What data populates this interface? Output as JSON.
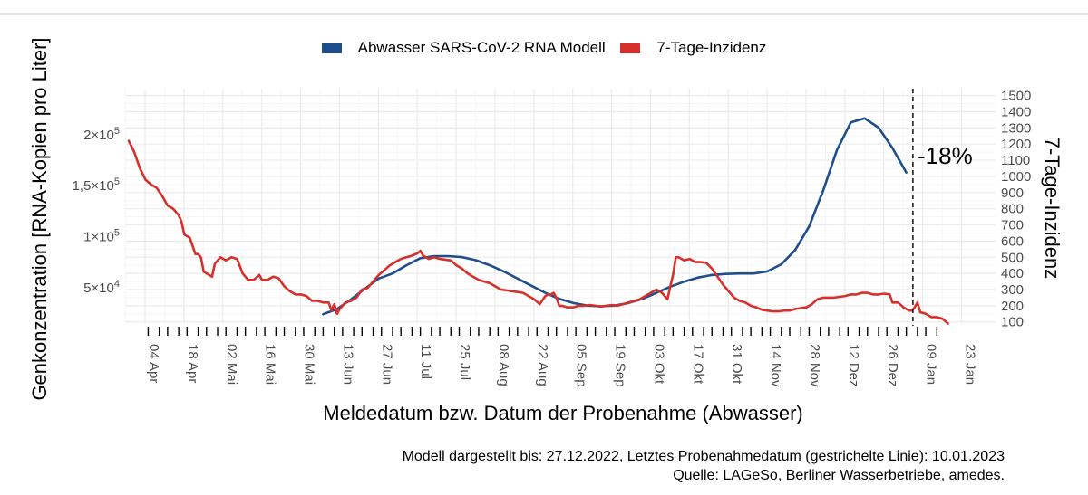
{
  "chart_data": {
    "type": "line",
    "title": "",
    "xlabel": "Meldedatum bzw. Datum der Probenahme (Abwasser)",
    "ylabel_left": "Genkonzentration [RNA-Kopien pro Liter]",
    "ylabel_right": "7-Tage-Inzidenz",
    "legend_position": "top",
    "grid": true,
    "x_tick_labels": [
      "04 Apr",
      "18 Apr",
      "02 Mai",
      "16 Mai",
      "30 Mai",
      "13 Jun",
      "27 Jun",
      "11 Jul",
      "25 Jul",
      "08 Aug",
      "22 Aug",
      "05 Sep",
      "19 Sep",
      "03 Okt",
      "17 Okt",
      "31 Okt",
      "14 Nov",
      "28 Nov",
      "12 Dez",
      "26 Dez",
      "09 Jan",
      "23 Jan"
    ],
    "left_axis": {
      "ticks": [
        {
          "value": 50000,
          "mantissa": "5",
          "exp": "4"
        },
        {
          "value": 100000,
          "mantissa": "1",
          "exp": "5"
        },
        {
          "value": 150000,
          "mantissa": "1,5",
          "exp": "5"
        },
        {
          "value": 200000,
          "mantissa": "2",
          "exp": "5"
        }
      ],
      "times_sign": "×10"
    },
    "right_axis": {
      "ticks": [
        100,
        200,
        300,
        400,
        500,
        600,
        700,
        800,
        900,
        1000,
        1100,
        1200,
        1300,
        1400,
        1500
      ]
    },
    "series": [
      {
        "name": "Abwasser SARS-CoV-2 RNA Modell",
        "color": "#1f4e8c",
        "axis": "left",
        "points": [
          [
            70,
            24000
          ],
          [
            75,
            29000
          ],
          [
            80,
            38500
          ],
          [
            85,
            49000
          ],
          [
            88,
            55000
          ],
          [
            90,
            59000
          ],
          [
            95,
            64000
          ],
          [
            100,
            72000
          ],
          [
            105,
            79000
          ],
          [
            110,
            81000
          ],
          [
            115,
            81000
          ],
          [
            120,
            80000
          ],
          [
            125,
            77000
          ],
          [
            130,
            72000
          ],
          [
            135,
            66000
          ],
          [
            140,
            59000
          ],
          [
            145,
            52000
          ],
          [
            150,
            45000
          ],
          [
            155,
            39000
          ],
          [
            160,
            35000
          ],
          [
            165,
            32500
          ],
          [
            170,
            31800
          ],
          [
            175,
            32500
          ],
          [
            180,
            35000
          ],
          [
            185,
            39000
          ],
          [
            190,
            45000
          ],
          [
            195,
            51000
          ],
          [
            200,
            56000
          ],
          [
            205,
            60000
          ],
          [
            210,
            62500
          ],
          [
            215,
            63500
          ],
          [
            220,
            64000
          ],
          [
            225,
            64000
          ],
          [
            230,
            66000
          ],
          [
            235,
            73000
          ],
          [
            240,
            87000
          ],
          [
            245,
            110000
          ],
          [
            250,
            145000
          ],
          [
            255,
            185000
          ],
          [
            260,
            212000
          ],
          [
            265,
            216000
          ],
          [
            270,
            207000
          ],
          [
            275,
            187000
          ],
          [
            280,
            163000
          ]
        ]
      },
      {
        "name": "7-Tage-Inzidenz",
        "color": "#d7302b",
        "axis": "right",
        "points": [
          [
            0,
            1220
          ],
          [
            2,
            1150
          ],
          [
            4,
            1050
          ],
          [
            6,
            980
          ],
          [
            8,
            950
          ],
          [
            10,
            930
          ],
          [
            12,
            880
          ],
          [
            14,
            820
          ],
          [
            16,
            800
          ],
          [
            18,
            760
          ],
          [
            19,
            720
          ],
          [
            20,
            640
          ],
          [
            22,
            620
          ],
          [
            24,
            520
          ],
          [
            25,
            520
          ],
          [
            26,
            500
          ],
          [
            27,
            410
          ],
          [
            29,
            390
          ],
          [
            30,
            380
          ],
          [
            31,
            460
          ],
          [
            33,
            500
          ],
          [
            35,
            480
          ],
          [
            37,
            500
          ],
          [
            39,
            490
          ],
          [
            41,
            400
          ],
          [
            43,
            360
          ],
          [
            45,
            360
          ],
          [
            47,
            390
          ],
          [
            48,
            360
          ],
          [
            50,
            360
          ],
          [
            52,
            380
          ],
          [
            54,
            370
          ],
          [
            56,
            320
          ],
          [
            58,
            290
          ],
          [
            60,
            270
          ],
          [
            62,
            270
          ],
          [
            64,
            260
          ],
          [
            66,
            230
          ],
          [
            68,
            230
          ],
          [
            70,
            220
          ],
          [
            72,
            220
          ],
          [
            73,
            170
          ],
          [
            74,
            210
          ],
          [
            75,
            150
          ],
          [
            76,
            180
          ],
          [
            78,
            220
          ],
          [
            80,
            230
          ],
          [
            82,
            250
          ],
          [
            84,
            300
          ],
          [
            86,
            310
          ],
          [
            88,
            350
          ],
          [
            90,
            390
          ],
          [
            92,
            420
          ],
          [
            94,
            450
          ],
          [
            96,
            470
          ],
          [
            98,
            490
          ],
          [
            100,
            500
          ],
          [
            102,
            510
          ],
          [
            104,
            525
          ],
          [
            105,
            540
          ],
          [
            106,
            510
          ],
          [
            108,
            490
          ],
          [
            110,
            500
          ],
          [
            112,
            490
          ],
          [
            114,
            485
          ],
          [
            116,
            480
          ],
          [
            118,
            450
          ],
          [
            120,
            430
          ],
          [
            122,
            400
          ],
          [
            124,
            380
          ],
          [
            126,
            360
          ],
          [
            128,
            350
          ],
          [
            130,
            340
          ],
          [
            132,
            320
          ],
          [
            134,
            300
          ],
          [
            136,
            295
          ],
          [
            138,
            290
          ],
          [
            140,
            285
          ],
          [
            142,
            280
          ],
          [
            144,
            260
          ],
          [
            146,
            240
          ],
          [
            148,
            210
          ],
          [
            150,
            260
          ],
          [
            151,
            270
          ],
          [
            152,
            270
          ],
          [
            153,
            280
          ],
          [
            154,
            250
          ],
          [
            155,
            200
          ],
          [
            156,
            200
          ],
          [
            158,
            190
          ],
          [
            160,
            190
          ],
          [
            162,
            200
          ],
          [
            164,
            200
          ],
          [
            166,
            205
          ],
          [
            168,
            200
          ],
          [
            170,
            195
          ],
          [
            172,
            200
          ],
          [
            174,
            205
          ],
          [
            176,
            200
          ],
          [
            178,
            210
          ],
          [
            180,
            220
          ],
          [
            182,
            230
          ],
          [
            184,
            240
          ],
          [
            186,
            260
          ],
          [
            188,
            280
          ],
          [
            190,
            300
          ],
          [
            192,
            280
          ],
          [
            194,
            240
          ],
          [
            195,
            320
          ],
          [
            196,
            390
          ],
          [
            197,
            500
          ],
          [
            198,
            500
          ],
          [
            200,
            480
          ],
          [
            202,
            490
          ],
          [
            204,
            470
          ],
          [
            206,
            470
          ],
          [
            208,
            465
          ],
          [
            210,
            430
          ],
          [
            212,
            380
          ],
          [
            214,
            330
          ],
          [
            216,
            290
          ],
          [
            218,
            250
          ],
          [
            220,
            230
          ],
          [
            222,
            220
          ],
          [
            224,
            200
          ],
          [
            226,
            190
          ],
          [
            228,
            175
          ],
          [
            230,
            170
          ],
          [
            232,
            165
          ],
          [
            234,
            165
          ],
          [
            236,
            170
          ],
          [
            238,
            170
          ],
          [
            240,
            180
          ],
          [
            242,
            185
          ],
          [
            244,
            190
          ],
          [
            246,
            210
          ],
          [
            248,
            240
          ],
          [
            250,
            250
          ],
          [
            252,
            250
          ],
          [
            254,
            250
          ],
          [
            256,
            255
          ],
          [
            258,
            260
          ],
          [
            260,
            270
          ],
          [
            262,
            270
          ],
          [
            264,
            280
          ],
          [
            266,
            280
          ],
          [
            268,
            270
          ],
          [
            270,
            270
          ],
          [
            272,
            275
          ],
          [
            274,
            270
          ],
          [
            275,
            220
          ],
          [
            277,
            220
          ],
          [
            279,
            190
          ],
          [
            281,
            170
          ],
          [
            282,
            170
          ],
          [
            283,
            190
          ],
          [
            284,
            220
          ],
          [
            285,
            160
          ],
          [
            287,
            150
          ],
          [
            289,
            130
          ],
          [
            291,
            130
          ],
          [
            293,
            120
          ],
          [
            295,
            90
          ]
        ]
      }
    ],
    "dashed_line_day": 284,
    "annotation": "-18%"
  },
  "footer": {
    "line1": "Modell dargestellt bis: 27.12.2022, Letztes Probenahmedatum (gestrichelte Linie): 10.01.2023",
    "line2": "Quelle: LAGeSo, Berliner Wasserbetriebe, amedes."
  }
}
